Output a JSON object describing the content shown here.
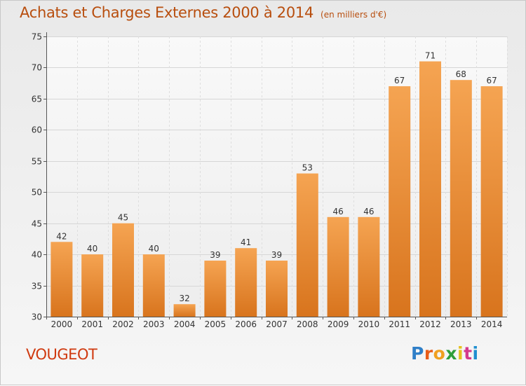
{
  "header": {
    "title": "Achats et Charges Externes 2000 à 2014",
    "subtitle": "(en milliers d'€)"
  },
  "footer": {
    "commune": "VOUGEOT",
    "logo": [
      "P",
      "r",
      "o",
      "x",
      "i",
      "t",
      "i"
    ]
  },
  "colors": {
    "bar_top": "#f5a452",
    "bar_bottom": "#d8741d",
    "title": "#b84e0e",
    "commune": "#d03a10",
    "logo": [
      "#2f7fc8",
      "#e85d1a",
      "#f0a020",
      "#2f9e3a",
      "#e6c21d",
      "#d43a8c",
      "#1f8fd0"
    ]
  },
  "chart_data": {
    "type": "bar",
    "title": "Achats et Charges Externes 2000 à 2014",
    "subtitle": "(en milliers d'€)",
    "categories": [
      "2000",
      "2001",
      "2002",
      "2003",
      "2004",
      "2005",
      "2006",
      "2007",
      "2008",
      "2009",
      "2010",
      "2011",
      "2012",
      "2013",
      "2014"
    ],
    "values": [
      42,
      40,
      45,
      40,
      32,
      39,
      41,
      39,
      53,
      46,
      46,
      67,
      71,
      68,
      67
    ],
    "ylim": [
      30,
      75
    ],
    "yticks": [
      30,
      35,
      40,
      45,
      50,
      55,
      60,
      65,
      70,
      75
    ],
    "grid": true
  }
}
